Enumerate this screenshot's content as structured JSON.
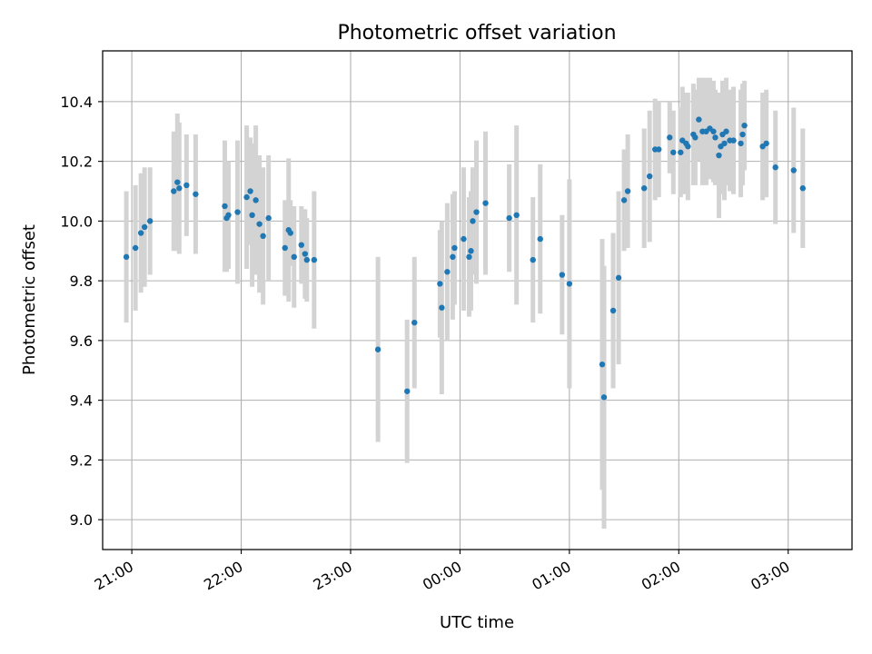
{
  "chart_data": {
    "type": "scatter",
    "title": "Photometric offset variation",
    "xlabel": "UTC time",
    "ylabel": "Photometric offset",
    "x_ticks": [
      "21:00",
      "22:00",
      "23:00",
      "00:00",
      "01:00",
      "02:00",
      "03:00"
    ],
    "y_ticks": [
      "9.0",
      "9.2",
      "9.4",
      "9.6",
      "9.8",
      "10.0",
      "10.2",
      "10.4"
    ],
    "xlim": [
      "20:44",
      "03:35"
    ],
    "ylim": [
      8.9,
      10.57
    ],
    "grid": true,
    "series": [
      {
        "marker_color": "#1f77b4",
        "errorbar_color": "#d3d3d3",
        "x": [
          "20:57",
          "21:02",
          "21:05",
          "21:07",
          "21:10",
          "21:23",
          "21:25",
          "21:26",
          "21:30",
          "21:35",
          "21:51",
          "21:52",
          "21:53",
          "21:58",
          "22:03",
          "22:05",
          "22:06",
          "22:08",
          "22:10",
          "22:12",
          "22:15",
          "22:24",
          "22:26",
          "22:27",
          "22:29",
          "22:33",
          "22:35",
          "22:36",
          "22:40",
          "23:15",
          "23:31",
          "23:35",
          "23:49",
          "23:50",
          "23:53",
          "23:56",
          "23:57",
          "24:02",
          "24:05",
          "24:06",
          "24:07",
          "24:09",
          "24:14",
          "24:27",
          "24:31",
          "24:40",
          "24:44",
          "24:56",
          "25:00",
          "25:18",
          "25:19",
          "25:24",
          "25:27",
          "25:30",
          "25:32",
          "25:41",
          "25:44",
          "25:47",
          "25:49",
          "25:55",
          "25:57",
          "26:01",
          "26:02",
          "26:04",
          "26:05",
          "26:08",
          "26:09",
          "26:11",
          "26:13",
          "26:15",
          "26:17",
          "26:19",
          "26:20",
          "26:22",
          "26:23",
          "26:24",
          "26:25",
          "26:26",
          "26:28",
          "26:30",
          "26:34",
          "26:35",
          "26:36",
          "26:46",
          "26:48",
          "26:53",
          "27:03",
          "27:08"
        ],
        "y": [
          9.88,
          9.91,
          9.96,
          9.98,
          10.0,
          10.1,
          10.13,
          10.11,
          10.12,
          10.09,
          10.05,
          10.01,
          10.02,
          10.03,
          10.08,
          10.1,
          10.02,
          10.07,
          9.99,
          9.95,
          10.01,
          9.91,
          9.97,
          9.96,
          9.88,
          9.92,
          9.89,
          9.87,
          9.87,
          9.57,
          9.43,
          9.66,
          9.79,
          9.71,
          9.83,
          9.88,
          9.91,
          9.94,
          9.88,
          9.9,
          10.0,
          10.03,
          10.06,
          10.01,
          10.02,
          9.87,
          9.94,
          9.82,
          9.79,
          9.52,
          9.41,
          9.7,
          9.81,
          10.07,
          10.1,
          10.11,
          10.15,
          10.24,
          10.24,
          10.28,
          10.23,
          10.23,
          10.27,
          10.26,
          10.25,
          10.29,
          10.28,
          10.34,
          10.3,
          10.3,
          10.31,
          10.3,
          10.28,
          10.22,
          10.25,
          10.29,
          10.26,
          10.3,
          10.27,
          10.27,
          10.26,
          10.29,
          10.32,
          10.25,
          10.26,
          10.18,
          10.17,
          10.11
        ],
        "err": [
          0.22,
          0.21,
          0.2,
          0.2,
          0.18,
          0.2,
          0.23,
          0.22,
          0.17,
          0.2,
          0.22,
          0.18,
          0.18,
          0.24,
          0.24,
          0.18,
          0.24,
          0.25,
          0.23,
          0.23,
          0.21,
          0.16,
          0.24,
          0.11,
          0.17,
          0.13,
          0.15,
          0.14,
          0.23,
          0.31,
          0.24,
          0.22,
          0.18,
          0.29,
          0.23,
          0.21,
          0.19,
          0.24,
          0.2,
          0.2,
          0.18,
          0.24,
          0.24,
          0.18,
          0.3,
          0.21,
          0.25,
          0.2,
          0.35,
          0.42,
          0.44,
          0.26,
          0.29,
          0.17,
          0.19,
          0.2,
          0.22,
          0.17,
          0.16,
          0.12,
          0.14,
          0.15,
          0.18,
          0.17,
          0.18,
          0.17,
          0.16,
          0.14,
          0.18,
          0.18,
          0.17,
          0.17,
          0.16,
          0.21,
          0.16,
          0.18,
          0.19,
          0.18,
          0.17,
          0.18,
          0.18,
          0.17,
          0.15,
          0.18,
          0.18,
          0.19,
          0.21,
          0.2
        ]
      }
    ]
  }
}
